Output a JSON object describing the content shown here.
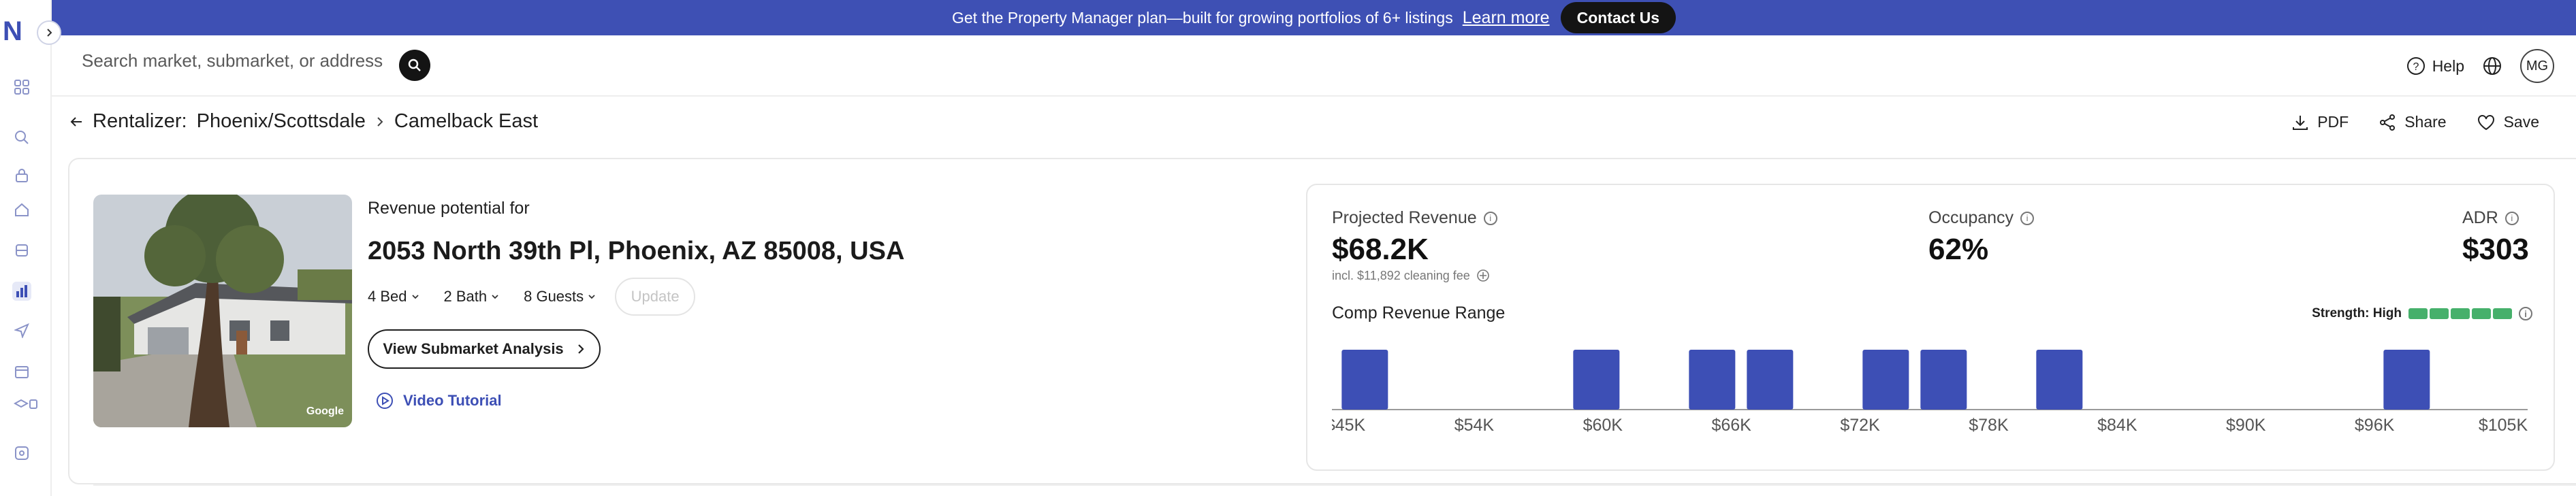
{
  "sidebar": {
    "logo": "N",
    "items": [
      "grid-icon",
      "search-icon",
      "lock-icon",
      "home-icon",
      "cube-icon",
      "chart-icon",
      "send-icon",
      "calendar-icon",
      "layers-icon",
      "dollar-icon"
    ]
  },
  "banner": {
    "message": "Get the Property Manager plan—built for growing portfolios of 6+ listings",
    "learn_more": "Learn more",
    "contact": "Contact Us"
  },
  "header": {
    "search_placeholder": "Search market, submarket, or address",
    "help": "Help",
    "avatar": "MG"
  },
  "breadcrumb": {
    "prefix": "Rentalizer:",
    "market": "Phoenix/Scottsdale",
    "submarket": "Camelback East"
  },
  "actions": {
    "pdf": "PDF",
    "share": "Share",
    "save": "Save"
  },
  "property": {
    "photo_credit": "Google",
    "revenue_for": "Revenue potential for",
    "address": "2053 North 39th Pl, Phoenix, AZ 85008, USA",
    "beds": "4 Bed",
    "baths": "2 Bath",
    "guests": "8 Guests",
    "update": "Update",
    "view_analysis": "View Submarket Analysis",
    "video_tutorial": "Video Tutorial"
  },
  "stats": {
    "projected_label": "Projected Revenue",
    "projected_value": "$68.2K",
    "cleaning_note": "incl. $11,892 cleaning fee",
    "occupancy_label": "Occupancy",
    "occupancy_value": "62%",
    "adr_label": "ADR",
    "adr_value": "$303"
  },
  "comp": {
    "title": "Comp Revenue Range",
    "strength_label": "Strength: High",
    "strength_segments": 5
  },
  "colors": {
    "brand": "#3e50b4",
    "bar": "#3d4fb5",
    "strength": "#46b06b"
  },
  "chart_data": {
    "type": "bar",
    "title": "Comp Revenue Range",
    "xlabel": "",
    "ylabel": "",
    "x_ticks": [
      "$45K",
      "$54K",
      "$60K",
      "$66K",
      "$72K",
      "$78K",
      "$84K",
      "$90K",
      "$96K",
      "$105K"
    ],
    "xlim": [
      45000,
      105000
    ],
    "bars": [
      {
        "x": 46000,
        "value": 1
      },
      {
        "x": 58000,
        "value": 1
      },
      {
        "x": 64000,
        "value": 1
      },
      {
        "x": 67000,
        "value": 1
      },
      {
        "x": 73000,
        "value": 1
      },
      {
        "x": 76000,
        "value": 1
      },
      {
        "x": 82000,
        "value": 1
      },
      {
        "x": 100000,
        "value": 1
      }
    ],
    "ylim": [
      0,
      1
    ]
  }
}
